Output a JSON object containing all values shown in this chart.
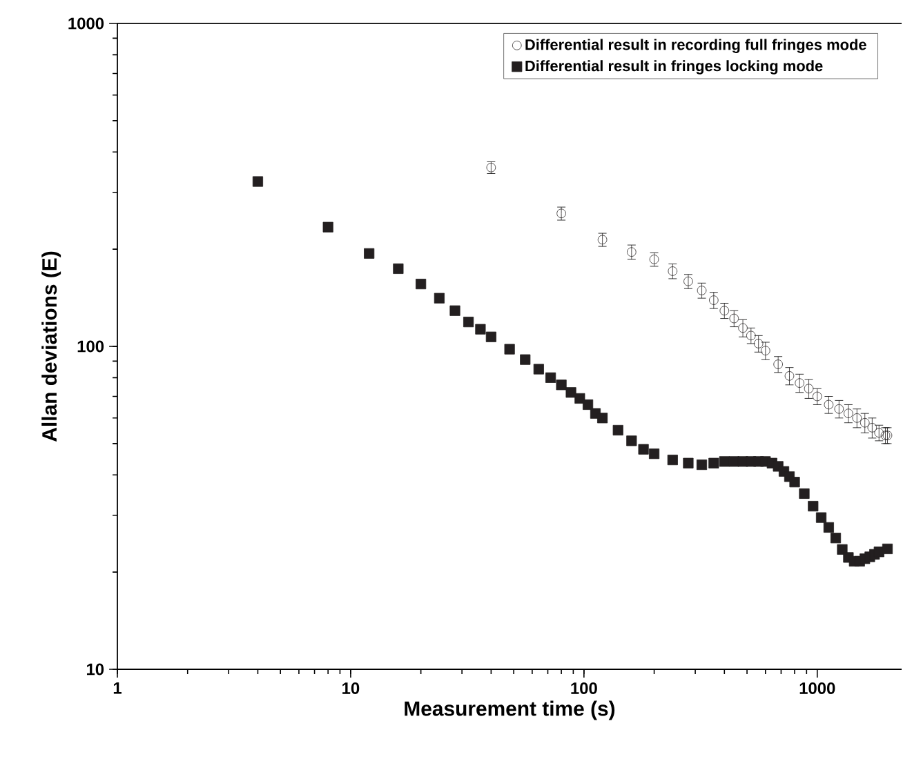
{
  "chart_data": {
    "type": "scatter",
    "xlabel": "Measurement time (s)",
    "ylabel": "Allan deviations (E)",
    "log": "xy",
    "xlim": [
      1,
      2300
    ],
    "ylim": [
      10,
      1000
    ],
    "xticks": [
      1,
      10,
      100,
      1000
    ],
    "yticks": [
      10,
      100,
      1000
    ],
    "legend": "top right",
    "grid": false,
    "series": [
      {
        "name": "Differential result in recording full fringes mode",
        "color": "#231f20",
        "marker": "circle",
        "x": [
          40,
          80,
          120,
          160,
          200,
          240,
          280,
          320,
          360,
          400,
          440,
          480,
          520,
          560,
          600,
          680,
          760,
          840,
          920,
          1000,
          1120,
          1240,
          1360,
          1480,
          1600,
          1720,
          1840,
          1960,
          2000
        ],
        "values": [
          358,
          258,
          214,
          196,
          186,
          171,
          159,
          149,
          139,
          129,
          122,
          114,
          108,
          102,
          97,
          88,
          81,
          77,
          74,
          70,
          66,
          64,
          62,
          60,
          58,
          56,
          54,
          53,
          53
        ],
        "errors": [
          15,
          12,
          10,
          10,
          9,
          9,
          8,
          8,
          8,
          7,
          7,
          7,
          6,
          6,
          6,
          5,
          5,
          5,
          5,
          4,
          4,
          4,
          4,
          4,
          4,
          4,
          3,
          3,
          3
        ]
      },
      {
        "name": "Differential result in fringes locking mode",
        "color": "#231f20",
        "marker": "square",
        "x": [
          4,
          8,
          12,
          16,
          20,
          24,
          28,
          32,
          36,
          40,
          48,
          56,
          64,
          72,
          80,
          88,
          96,
          104,
          112,
          120,
          140,
          160,
          180,
          200,
          240,
          280,
          320,
          360,
          400,
          440,
          480,
          520,
          560,
          600,
          640,
          680,
          720,
          760,
          800,
          880,
          960,
          1040,
          1120,
          1200,
          1280,
          1360,
          1440,
          1520,
          1600,
          1680,
          1760,
          1840,
          2000
        ],
        "values": [
          324,
          234,
          194,
          174,
          156,
          141,
          129,
          119,
          113,
          107,
          98,
          91,
          85,
          80,
          76,
          72,
          69,
          66,
          62,
          60,
          55,
          51,
          48,
          46.5,
          44.5,
          43.5,
          43,
          43.5,
          44,
          44,
          44,
          44,
          44,
          44,
          43.5,
          42.5,
          41,
          39.5,
          38,
          35,
          32,
          29.5,
          27.5,
          25.5,
          23.5,
          22.2,
          21.6,
          21.6,
          22,
          22.3,
          22.7,
          23.1,
          23.6
        ]
      }
    ]
  }
}
